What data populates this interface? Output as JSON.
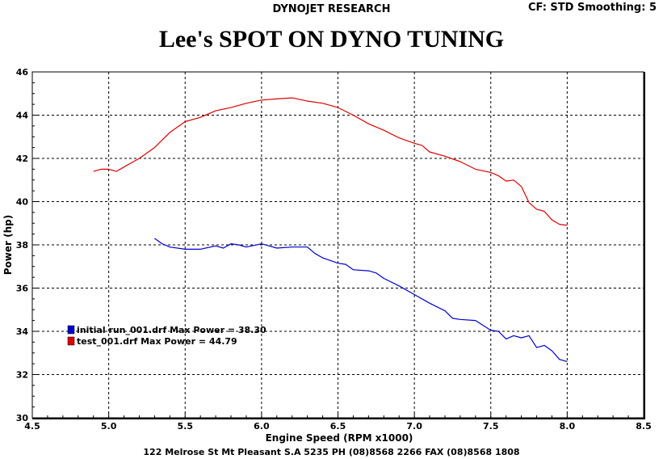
{
  "header": {
    "company": "DYNOJET RESEARCH",
    "settings": "CF: STD  Smoothing: 5"
  },
  "title": "Lee's SPOT ON DYNO TUNING",
  "footer": "122 Melrose St  Mt Pleasant  S.A  5235 PH (08)8568 2266 FAX (08)8568 1808",
  "colors": {
    "series_initial": "#0000cc",
    "series_test": "#dd0000",
    "grid": "#000000",
    "background": "#ffffff"
  },
  "chart_data": {
    "type": "line",
    "xlabel": "Engine Speed (RPM x1000)",
    "ylabel": "Power (hp)",
    "xlim": [
      4.5,
      8.5
    ],
    "ylim": [
      30,
      46
    ],
    "xticks": [
      "4.5",
      "5.0",
      "5.5",
      "6.0",
      "6.5",
      "7.0",
      "7.5",
      "8.0",
      "8.5"
    ],
    "yticks": [
      "30",
      "32",
      "34",
      "36",
      "38",
      "40",
      "42",
      "44",
      "46"
    ],
    "grid": true,
    "grid_style": "dashed",
    "legend_position": "lower-left",
    "series": [
      {
        "name": "initial run_001.drf Max Power = 38.30",
        "color": "#0000cc",
        "x": [
          5.3,
          5.35,
          5.4,
          5.5,
          5.6,
          5.7,
          5.75,
          5.8,
          5.85,
          5.9,
          6.0,
          6.05,
          6.1,
          6.2,
          6.3,
          6.35,
          6.4,
          6.5,
          6.55,
          6.6,
          6.7,
          6.75,
          6.8,
          6.9,
          7.0,
          7.1,
          7.2,
          7.25,
          7.3,
          7.4,
          7.5,
          7.55,
          7.6,
          7.65,
          7.7,
          7.75,
          7.8,
          7.85,
          7.9,
          7.95,
          8.0
        ],
        "y": [
          38.3,
          38.05,
          37.9,
          37.8,
          37.8,
          37.95,
          37.85,
          38.05,
          38.0,
          37.9,
          38.05,
          37.95,
          37.85,
          37.9,
          37.9,
          37.6,
          37.4,
          37.15,
          37.1,
          36.85,
          36.8,
          36.7,
          36.45,
          36.1,
          35.7,
          35.3,
          34.95,
          34.6,
          34.55,
          34.5,
          34.05,
          34.0,
          33.65,
          33.8,
          33.7,
          33.8,
          33.25,
          33.35,
          33.1,
          32.7,
          32.6
        ]
      },
      {
        "name": "test_001.drf Max Power = 44.79",
        "color": "#dd0000",
        "x": [
          4.9,
          4.95,
          5.0,
          5.05,
          5.1,
          5.2,
          5.3,
          5.4,
          5.5,
          5.6,
          5.7,
          5.8,
          5.9,
          6.0,
          6.1,
          6.2,
          6.3,
          6.4,
          6.5,
          6.6,
          6.7,
          6.8,
          6.9,
          7.0,
          7.05,
          7.1,
          7.2,
          7.3,
          7.4,
          7.5,
          7.55,
          7.6,
          7.65,
          7.7,
          7.75,
          7.8,
          7.85,
          7.9,
          7.95,
          8.0
        ],
        "y": [
          41.4,
          41.5,
          41.5,
          41.4,
          41.6,
          42.0,
          42.5,
          43.2,
          43.7,
          43.9,
          44.2,
          44.35,
          44.55,
          44.7,
          44.75,
          44.8,
          44.65,
          44.55,
          44.35,
          44.0,
          43.6,
          43.3,
          42.95,
          42.7,
          42.6,
          42.3,
          42.1,
          41.85,
          41.5,
          41.35,
          41.2,
          40.95,
          41.0,
          40.7,
          39.95,
          39.65,
          39.55,
          39.15,
          38.95,
          38.9
        ]
      }
    ]
  }
}
